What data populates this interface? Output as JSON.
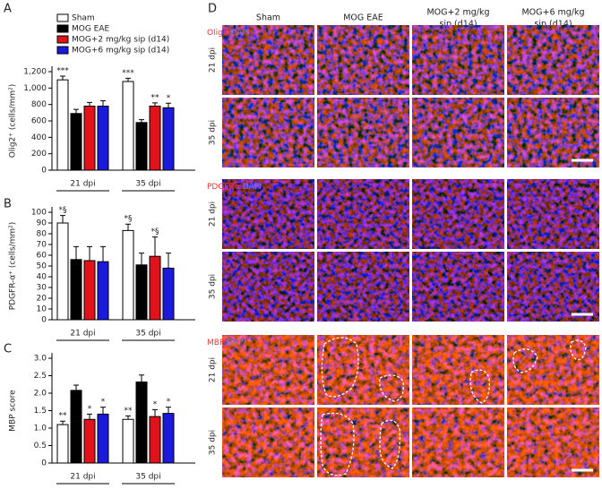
{
  "chart_data": [
    {
      "type": "bar",
      "label": "A",
      "y_label": "Olig2⁺ (cells/mm²)",
      "categories": [
        "21 dpi",
        "35 dpi"
      ],
      "series": [
        {
          "name": "Sham",
          "color": "#ffffff",
          "values": [
            1100,
            1080
          ],
          "errors": [
            45,
            40
          ],
          "annotations": [
            "***",
            "***"
          ]
        },
        {
          "name": "MOG EAE",
          "color": "#000000",
          "values": [
            690,
            580
          ],
          "errors": [
            50,
            35
          ],
          "annotations": [
            null,
            null
          ]
        },
        {
          "name": "MOG+2 mg/kg sip (d14)",
          "color": "#e0121b",
          "values": [
            780,
            780
          ],
          "errors": [
            45,
            40
          ],
          "annotations": [
            null,
            "**"
          ]
        },
        {
          "name": "MOG+6 mg/kg sip (d14)",
          "color": "#1a1adc",
          "values": [
            780,
            760
          ],
          "errors": [
            65,
            55
          ],
          "annotations": [
            null,
            "*"
          ]
        }
      ],
      "ylim": [
        0,
        1200
      ],
      "yticks": [
        0,
        200,
        400,
        600,
        800,
        {
          "value": 1000,
          "label": "1,000"
        },
        {
          "value": 1200,
          "label": "1,200"
        }
      ],
      "legend": "top-left"
    },
    {
      "type": "bar",
      "label": "B",
      "y_label": "PDGFR-α⁺ (cells/mm²)",
      "categories": [
        "21 dpi",
        "35 dpi"
      ],
      "series": [
        {
          "color": "#ffffff",
          "values": [
            90,
            83
          ],
          "errors": [
            7,
            6
          ],
          "annotations": [
            "*§",
            "*§"
          ]
        },
        {
          "color": "#000000",
          "values": [
            56,
            51
          ],
          "errors": [
            12,
            11
          ],
          "annotations": [
            null,
            null
          ]
        },
        {
          "color": "#e0121b",
          "values": [
            55,
            59
          ],
          "errors": [
            13,
            18
          ],
          "annotations": [
            null,
            "*§"
          ]
        },
        {
          "color": "#1a1adc",
          "values": [
            54,
            48
          ],
          "errors": [
            14,
            14
          ],
          "annotations": [
            null,
            null
          ]
        }
      ],
      "ylim": [
        0,
        100
      ],
      "yticks": [
        0,
        10,
        20,
        30,
        40,
        50,
        60,
        70,
        80,
        90,
        100
      ]
    },
    {
      "type": "bar",
      "label": "C",
      "y_label": "MBP score",
      "categories": [
        "21 dpi",
        "35 dpi"
      ],
      "series": [
        {
          "color": "#ffffff",
          "values": [
            1.1,
            1.25
          ],
          "errors": [
            0.1,
            0.1
          ],
          "annotations": [
            "**",
            "**"
          ]
        },
        {
          "color": "#000000",
          "values": [
            2.08,
            2.32
          ],
          "errors": [
            0.15,
            0.2
          ],
          "annotations": [
            null,
            null
          ]
        },
        {
          "color": "#e0121b",
          "values": [
            1.25,
            1.33
          ],
          "errors": [
            0.15,
            0.2
          ],
          "annotations": [
            "*",
            "*"
          ]
        },
        {
          "color": "#1a1adc",
          "values": [
            1.4,
            1.42
          ],
          "errors": [
            0.2,
            0.18
          ],
          "annotations": [
            "*",
            "*"
          ]
        }
      ],
      "ylim": [
        0,
        3
      ],
      "yticks": [
        0,
        0.5,
        {
          "value": 1,
          "label": "1.0"
        },
        1.5,
        {
          "value": 2,
          "label": "2.0"
        },
        2.5,
        {
          "value": 3,
          "label": "3.0"
        }
      ]
    }
  ],
  "image_panel": {
    "label": "D",
    "columns": [
      [
        "Sham"
      ],
      [
        "MOG EAE"
      ],
      [
        "MOG+2 mg/kg",
        "sip (d14)"
      ],
      [
        "MOG+6 mg/kg",
        "sip (d14)"
      ]
    ],
    "blocks": [
      {
        "marker": "Olig2",
        "counterstain": "DAPI",
        "rows": [
          "21 dpi",
          "35 dpi"
        ]
      },
      {
        "marker": "PDGFRα",
        "counterstain": "DAPI",
        "rows": [
          "21 dpi",
          "35 dpi"
        ]
      },
      {
        "marker": "MBP",
        "counterstain": "DAPI",
        "rows": [
          "21 dpi",
          "35 dpi"
        ]
      }
    ]
  }
}
